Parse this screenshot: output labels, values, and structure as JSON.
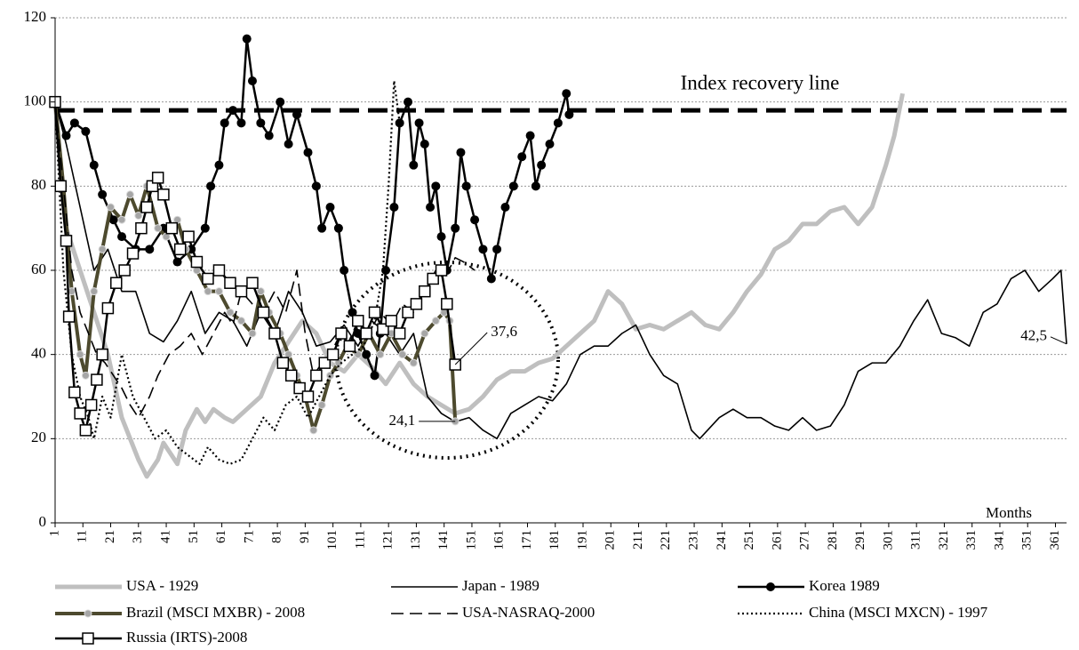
{
  "chart_data": {
    "type": "line",
    "xlabel": "Months",
    "xlim": [
      1,
      365
    ],
    "ylim": [
      0,
      120
    ],
    "yticks": [
      0,
      20,
      40,
      60,
      80,
      100,
      120
    ],
    "xticks": [
      1,
      11,
      21,
      31,
      41,
      51,
      61,
      71,
      81,
      91,
      101,
      111,
      121,
      131,
      141,
      151,
      161,
      171,
      181,
      191,
      201,
      211,
      221,
      231,
      241,
      251,
      261,
      271,
      281,
      291,
      301,
      311,
      321,
      331,
      341,
      351,
      361
    ],
    "grid": true,
    "recovery_line": {
      "label": "Index recovery line",
      "value": 98
    },
    "series": [
      {
        "name": "USA - 1929",
        "color": "#bfbfbf",
        "width": 5,
        "x": [
          1,
          5,
          15,
          20,
          25,
          28,
          31,
          34,
          38,
          40,
          45,
          48,
          52,
          55,
          58,
          62,
          65,
          70,
          75,
          80,
          85,
          90,
          95,
          100,
          105,
          110,
          115,
          120,
          125,
          130,
          135,
          140,
          145,
          150,
          155,
          160,
          165,
          170,
          175,
          180,
          185,
          190,
          195,
          200,
          205,
          210,
          215,
          220,
          225,
          230,
          235,
          240,
          245,
          250,
          255,
          260,
          265,
          270,
          275,
          280,
          285,
          290,
          295,
          300,
          303,
          306
        ],
        "values": [
          100,
          70,
          50,
          40,
          25,
          20,
          15,
          11,
          15,
          19,
          14,
          22,
          27,
          24,
          27,
          25,
          24,
          27,
          30,
          38,
          43,
          48,
          45,
          38,
          36,
          40,
          37,
          33,
          38,
          33,
          30,
          28,
          26,
          27,
          30,
          34,
          36,
          36,
          38,
          39,
          42,
          45,
          48,
          55,
          52,
          46,
          47,
          46,
          48,
          50,
          47,
          46,
          50,
          55,
          59,
          65,
          67,
          71,
          71,
          74,
          75,
          71,
          75,
          85,
          92,
          102
        ]
      },
      {
        "name": "Japan - 1989",
        "color": "#000000",
        "width": 1.6,
        "x": [
          1,
          5,
          10,
          15,
          20,
          25,
          30,
          35,
          40,
          45,
          50,
          55,
          60,
          65,
          70,
          75,
          80,
          85,
          90,
          95,
          100,
          105,
          110,
          115,
          120,
          125,
          130,
          135,
          140,
          145,
          150,
          155,
          160,
          165,
          170,
          175,
          180,
          185,
          190,
          195,
          200,
          205,
          210,
          215,
          220,
          225,
          230,
          233,
          240,
          245,
          250,
          255,
          260,
          265,
          270,
          275,
          280,
          285,
          290,
          295,
          300,
          305,
          310,
          315,
          320,
          325,
          330,
          335,
          340,
          345,
          350,
          355,
          360,
          363,
          365
        ],
        "values": [
          100,
          90,
          75,
          60,
          65,
          55,
          55,
          45,
          43,
          48,
          55,
          45,
          50,
          48,
          42,
          50,
          45,
          55,
          50,
          42,
          43,
          47,
          42,
          48,
          45,
          40,
          45,
          30,
          26,
          24,
          25,
          22,
          20,
          26,
          28,
          30,
          29,
          33,
          40,
          42,
          42,
          45,
          47,
          40,
          35,
          33,
          22,
          20,
          25,
          27,
          25,
          25,
          23,
          22,
          25,
          22,
          23,
          28,
          36,
          38,
          38,
          42,
          48,
          53,
          45,
          44,
          42,
          50,
          52,
          58,
          60,
          55,
          58,
          60,
          42.5
        ],
        "value_labels": [
          null,
          null,
          null,
          null,
          null,
          null,
          null,
          null,
          null,
          null,
          null,
          null,
          null,
          null,
          null,
          null,
          null,
          null,
          null,
          null,
          null,
          null,
          null,
          null,
          null,
          null,
          null,
          null,
          null,
          null,
          null,
          null,
          null,
          null,
          null,
          null,
          null,
          null,
          null,
          null,
          null,
          null,
          null,
          null,
          null,
          null,
          null,
          null,
          null,
          null,
          null,
          null,
          null,
          null,
          null,
          null,
          null,
          null,
          null,
          null,
          null,
          null,
          null,
          null,
          null,
          null,
          null,
          null,
          null,
          null,
          null,
          null,
          null,
          null,
          "42,5"
        ]
      },
      {
        "name": "Korea 1989",
        "color": "#000000",
        "width": 2.5,
        "marker": "circle",
        "x": [
          1,
          5,
          8,
          12,
          15,
          18,
          22,
          25,
          30,
          35,
          40,
          45,
          50,
          55,
          57,
          60,
          62,
          65,
          68,
          70,
          72,
          75,
          78,
          82,
          85,
          88,
          92,
          95,
          97,
          100,
          103,
          105,
          108,
          110,
          113,
          116,
          118,
          120,
          123,
          125,
          128,
          130,
          132,
          134,
          136,
          138,
          140,
          142,
          145,
          147,
          149,
          152,
          155,
          158,
          160,
          163,
          166,
          169,
          172,
          174,
          176,
          179,
          182,
          185,
          186
        ],
        "values": [
          100,
          92,
          95,
          93,
          85,
          78,
          72,
          68,
          65,
          65,
          70,
          62,
          65,
          70,
          80,
          85,
          95,
          98,
          95,
          115,
          105,
          95,
          92,
          100,
          90,
          97,
          88,
          80,
          70,
          75,
          70,
          60,
          50,
          45,
          40,
          35,
          45,
          60,
          75,
          95,
          100,
          85,
          95,
          90,
          75,
          80,
          68,
          60,
          70,
          88,
          80,
          72,
          65,
          58,
          65,
          75,
          80,
          87,
          92,
          80,
          85,
          90,
          95,
          102,
          97
        ]
      },
      {
        "name": "Brazil (MSCI MXBR) - 2008",
        "color": "#4d4a2e",
        "width": 4,
        "marker": "dot",
        "x": [
          1,
          4,
          7,
          10,
          12,
          15,
          18,
          21,
          25,
          28,
          31,
          34,
          38,
          41,
          45,
          48,
          52,
          56,
          60,
          64,
          68,
          72,
          75,
          78,
          82,
          85,
          88,
          91,
          94,
          97,
          100,
          103,
          106,
          110,
          114,
          118,
          122,
          126,
          130,
          134,
          138,
          141,
          143,
          145
        ],
        "values": [
          100,
          80,
          55,
          40,
          35,
          55,
          65,
          75,
          72,
          78,
          73,
          80,
          70,
          68,
          72,
          65,
          60,
          55,
          55,
          50,
          48,
          45,
          55,
          50,
          45,
          40,
          35,
          30,
          22,
          28,
          35,
          38,
          42,
          40,
          45,
          40,
          45,
          40,
          38,
          45,
          48,
          50,
          48,
          24.1
        ],
        "value_labels": [
          null,
          null,
          null,
          null,
          null,
          null,
          null,
          null,
          null,
          null,
          null,
          null,
          null,
          null,
          null,
          null,
          null,
          null,
          null,
          null,
          null,
          null,
          null,
          null,
          null,
          null,
          null,
          null,
          null,
          null,
          null,
          null,
          null,
          null,
          null,
          null,
          null,
          null,
          null,
          null,
          null,
          null,
          null,
          "24,1"
        ]
      },
      {
        "name": "USA-NASRAQ-2000",
        "color": "#000000",
        "width": 1.6,
        "dash": "dashed",
        "x": [
          1,
          4,
          7,
          10,
          13,
          16,
          19,
          22,
          25,
          28,
          31,
          35,
          38,
          42,
          46,
          50,
          54,
          58,
          62,
          65,
          68,
          72,
          76,
          80,
          84,
          88,
          91,
          94,
          97,
          100,
          103,
          106,
          110,
          114,
          118,
          122,
          126,
          130,
          134,
          138,
          141,
          145,
          148,
          152
        ],
        "values": [
          100,
          80,
          60,
          50,
          45,
          40,
          38,
          35,
          32,
          28,
          25,
          30,
          35,
          40,
          42,
          45,
          40,
          45,
          50,
          47,
          55,
          52,
          50,
          55,
          50,
          60,
          45,
          35,
          38,
          40,
          44,
          42,
          48,
          45,
          50,
          47,
          52,
          50,
          55,
          60,
          58,
          63,
          62,
          60
        ]
      },
      {
        "name": "China (MSCI MXCN) - 1997",
        "color": "#000000",
        "width": 2.2,
        "dash": "dotted",
        "x": [
          1,
          4,
          7,
          10,
          13,
          15,
          18,
          21,
          25,
          29,
          33,
          37,
          41,
          45,
          49,
          53,
          56,
          60,
          64,
          68,
          72,
          76,
          80,
          84,
          88,
          92,
          96,
          100,
          104,
          108,
          112,
          116,
          119,
          121,
          123,
          125
        ],
        "values": [
          100,
          60,
          40,
          30,
          25,
          20,
          30,
          25,
          40,
          30,
          25,
          20,
          22,
          18,
          16,
          14,
          18,
          15,
          14,
          15,
          20,
          25,
          22,
          28,
          30,
          25,
          30,
          35,
          38,
          40,
          42,
          48,
          60,
          80,
          105,
          95
        ]
      },
      {
        "name": "Russia (IRTS)-2008",
        "color": "#000000",
        "width": 2.5,
        "marker": "square",
        "x": [
          1,
          3,
          5,
          6,
          8,
          10,
          12,
          14,
          16,
          18,
          20,
          23,
          26,
          29,
          32,
          34,
          36,
          38,
          40,
          43,
          46,
          49,
          52,
          56,
          60,
          64,
          68,
          72,
          76,
          80,
          83,
          86,
          89,
          92,
          95,
          98,
          101,
          104,
          107,
          110,
          113,
          116,
          119,
          122,
          125,
          128,
          131,
          134,
          137,
          140,
          142,
          145
        ],
        "values": [
          100,
          80,
          67,
          49,
          31,
          26,
          22,
          28,
          34,
          40,
          51,
          57,
          60,
          64,
          70,
          75,
          80,
          82,
          78,
          70,
          65,
          68,
          62,
          58,
          60,
          57,
          55,
          57,
          50,
          45,
          38,
          35,
          32,
          30,
          35,
          38,
          40,
          45,
          42,
          48,
          45,
          50,
          46,
          48,
          45,
          50,
          52,
          55,
          58,
          60,
          52,
          37.6
        ],
        "value_labels": [
          null,
          null,
          null,
          null,
          null,
          null,
          null,
          null,
          null,
          null,
          null,
          null,
          null,
          null,
          null,
          null,
          null,
          null,
          null,
          null,
          null,
          null,
          null,
          null,
          null,
          null,
          null,
          null,
          null,
          null,
          null,
          null,
          null,
          null,
          null,
          null,
          null,
          null,
          null,
          null,
          null,
          null,
          null,
          null,
          null,
          null,
          null,
          null,
          null,
          null,
          null,
          "37,6"
        ]
      }
    ]
  }
}
